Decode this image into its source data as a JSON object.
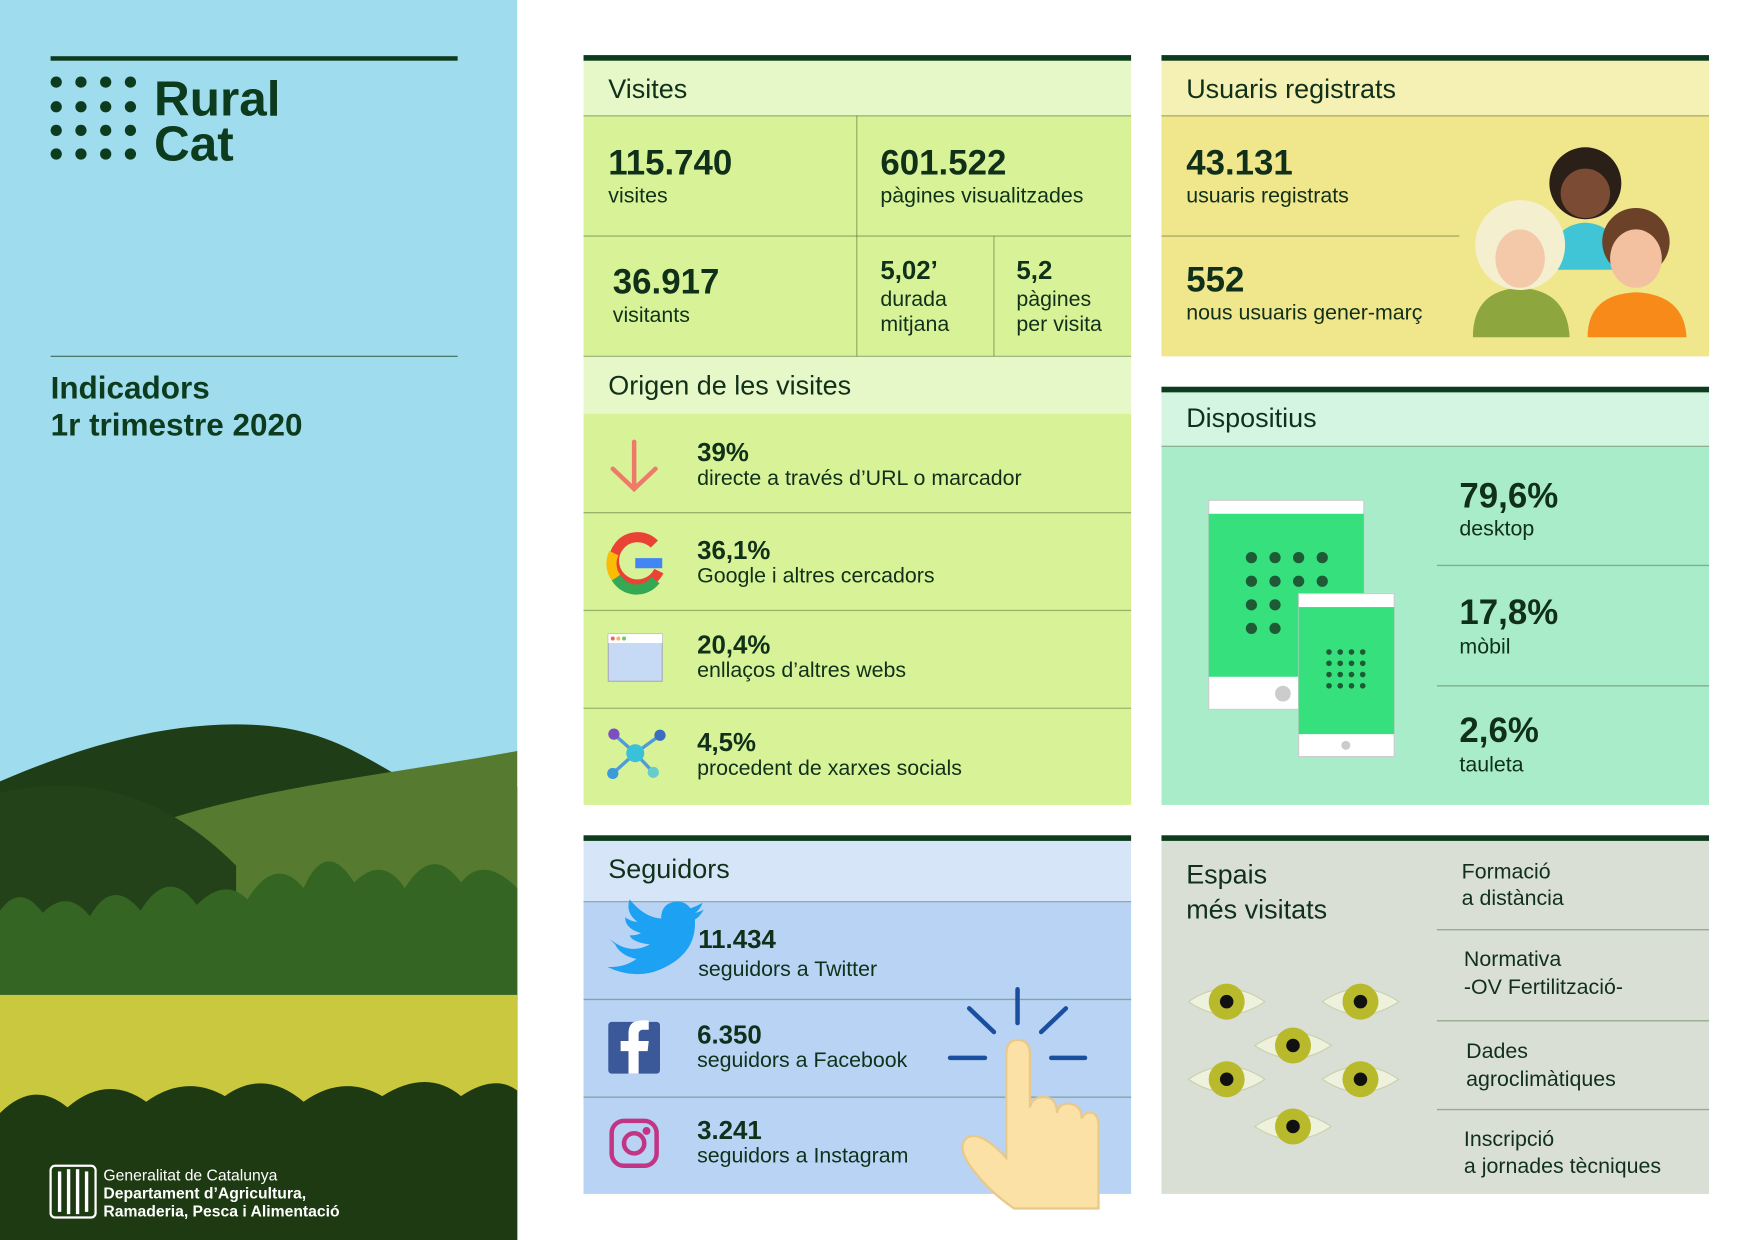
{
  "brand": {
    "logo": [
      "Rural",
      "Cat"
    ],
    "title": [
      "Indicadors",
      "1r trimestre 2020"
    ],
    "footer": [
      "Generalitat de Catalunya",
      "Departament d’Agricultura,",
      "Ramaderia, Pesca i Alimentació"
    ]
  },
  "visites": {
    "heading": "Visites",
    "stats": [
      {
        "value": "115.740",
        "label": [
          "visites"
        ]
      },
      {
        "value": "601.522",
        "label": [
          "pàgines visualitzades"
        ]
      },
      {
        "value": "36.917",
        "label": [
          "visitants"
        ]
      },
      {
        "value": "5,02’",
        "label": [
          "durada",
          "mitjana"
        ]
      },
      {
        "value": "5,2",
        "label": [
          "pàgines",
          "per visita"
        ]
      }
    ]
  },
  "origen": {
    "heading": "Origen de les visites",
    "rows": [
      {
        "value": "39%",
        "label": "directe a través d’URL o marcador"
      },
      {
        "value": "36,1%",
        "label": "Google i altres cercadors"
      },
      {
        "value": "20,4%",
        "label": "enllaços d’altres webs"
      },
      {
        "value": "4,5%",
        "label": "procedent de xarxes socials"
      }
    ]
  },
  "usuaris": {
    "heading": "Usuaris registrats",
    "stats": [
      {
        "value": "43.131",
        "label": "usuaris registrats"
      },
      {
        "value": "552",
        "label": "nous usuaris gener-març"
      }
    ]
  },
  "dispositius": {
    "heading": "Dispositius",
    "rows": [
      {
        "value": "79,6%",
        "label": "desktop"
      },
      {
        "value": "17,8%",
        "label": "mòbil"
      },
      {
        "value": "2,6%",
        "label": "tauleta"
      }
    ]
  },
  "seguidors": {
    "heading": "Seguidors",
    "rows": [
      {
        "value": "11.434",
        "label": "seguidors a Twitter"
      },
      {
        "value": "6.350",
        "label": "seguidors a Facebook"
      },
      {
        "value": "3.241",
        "label": "seguidors a Instagram"
      }
    ]
  },
  "espais": {
    "heading": [
      "Espais",
      "més visitats"
    ],
    "items": [
      [
        "Formació",
        "a distància"
      ],
      [
        "Normativa",
        "-OV Fertilització-"
      ],
      [
        "Dades",
        "agroclimàtiques"
      ],
      [
        "Inscripció",
        "a jornades tècniques"
      ]
    ]
  }
}
